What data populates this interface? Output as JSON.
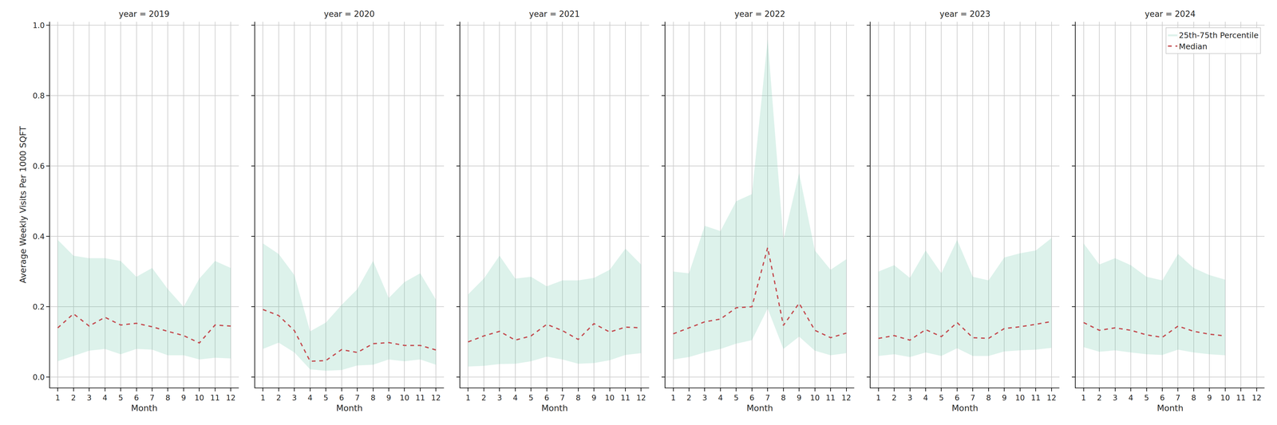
{
  "chart_data": [
    {
      "type": "line",
      "title": "year = 2019",
      "x_label": "Month",
      "y_label": "Average Weekly Visits Per 1000 SQFT",
      "x": [
        1,
        2,
        3,
        4,
        5,
        6,
        7,
        8,
        9,
        10,
        11,
        12
      ],
      "series": [
        {
          "name": "Median",
          "color": "#c44e52",
          "line_style": "dashed",
          "values": [
            0.14,
            0.18,
            0.145,
            0.17,
            0.148,
            0.153,
            0.143,
            0.13,
            0.118,
            0.097,
            0.148,
            0.145
          ]
        },
        {
          "name": "25th-75th Percentile",
          "type": "area",
          "color": "#66c2a5",
          "lower": [
            0.045,
            0.06,
            0.075,
            0.08,
            0.065,
            0.08,
            0.078,
            0.062,
            0.062,
            0.05,
            0.055,
            0.053
          ],
          "upper": [
            0.39,
            0.345,
            0.338,
            0.338,
            0.33,
            0.285,
            0.31,
            0.25,
            0.2,
            0.28,
            0.33,
            0.31
          ]
        }
      ],
      "xlim": [
        0.5,
        12.5
      ],
      "xticks": [
        1,
        2,
        3,
        4,
        5,
        6,
        7,
        8,
        9,
        10,
        11,
        12
      ],
      "ylim": [
        -0.03,
        1.01
      ],
      "yticks": [
        {
          "value": 0,
          "label": "0.0"
        },
        {
          "value": 0.2,
          "label": "0.2"
        },
        {
          "value": 0.4,
          "label": "0.4"
        },
        {
          "value": 0.6,
          "label": "0.6"
        },
        {
          "value": 0.8,
          "label": "0.8"
        },
        {
          "value": 1,
          "label": "1.0"
        }
      ],
      "grid": true
    },
    {
      "type": "line",
      "title": "year = 2020",
      "x_label": "Month",
      "x": [
        1,
        2,
        3,
        4,
        5,
        6,
        7,
        8,
        9,
        10,
        11,
        12
      ],
      "series": [
        {
          "name": "Median",
          "color": "#c44e52",
          "line_style": "dashed",
          "values": [
            0.192,
            0.175,
            0.132,
            0.045,
            0.047,
            0.078,
            0.07,
            0.095,
            0.098,
            0.09,
            0.09,
            0.077
          ]
        },
        {
          "name": "25th-75th Percentile",
          "type": "area",
          "color": "#66c2a5",
          "lower": [
            0.08,
            0.098,
            0.07,
            0.022,
            0.018,
            0.02,
            0.033,
            0.035,
            0.05,
            0.045,
            0.05,
            0.035
          ],
          "upper": [
            0.38,
            0.35,
            0.29,
            0.13,
            0.155,
            0.205,
            0.25,
            0.33,
            0.225,
            0.27,
            0.295,
            0.22
          ]
        }
      ],
      "xlim": [
        0.5,
        12.5
      ],
      "xticks": [
        1,
        2,
        3,
        4,
        5,
        6,
        7,
        8,
        9,
        10,
        11,
        12
      ],
      "ylim": [
        -0.03,
        1.01
      ],
      "yticks": [
        {
          "value": 0,
          "label": "0.0"
        },
        {
          "value": 0.2,
          "label": "0.2"
        },
        {
          "value": 0.4,
          "label": "0.4"
        },
        {
          "value": 0.6,
          "label": "0.6"
        },
        {
          "value": 0.8,
          "label": "0.8"
        },
        {
          "value": 1,
          "label": "1.0"
        }
      ],
      "grid": true,
      "tick_labels": "x"
    },
    {
      "type": "line",
      "title": "year = 2021",
      "x_label": "Month",
      "x": [
        1,
        2,
        3,
        4,
        5,
        6,
        7,
        8,
        9,
        10,
        11,
        12
      ],
      "series": [
        {
          "name": "Median",
          "color": "#c44e52",
          "line_style": "dashed",
          "values": [
            0.1,
            0.117,
            0.13,
            0.105,
            0.117,
            0.15,
            0.132,
            0.107,
            0.152,
            0.128,
            0.142,
            0.14
          ]
        },
        {
          "name": "25th-75th Percentile",
          "type": "area",
          "color": "#66c2a5",
          "lower": [
            0.03,
            0.032,
            0.037,
            0.038,
            0.045,
            0.058,
            0.05,
            0.038,
            0.04,
            0.048,
            0.063,
            0.068
          ],
          "upper": [
            0.235,
            0.28,
            0.345,
            0.28,
            0.285,
            0.258,
            0.275,
            0.275,
            0.282,
            0.305,
            0.365,
            0.32
          ]
        }
      ],
      "xlim": [
        0.5,
        12.5
      ],
      "xticks": [
        1,
        2,
        3,
        4,
        5,
        6,
        7,
        8,
        9,
        10,
        11,
        12
      ],
      "ylim": [
        -0.03,
        1.01
      ],
      "yticks": [
        {
          "value": 0,
          "label": "0.0"
        },
        {
          "value": 0.2,
          "label": "0.2"
        },
        {
          "value": 0.4,
          "label": "0.4"
        },
        {
          "value": 0.6,
          "label": "0.6"
        },
        {
          "value": 0.8,
          "label": "0.8"
        },
        {
          "value": 1,
          "label": "1.0"
        }
      ],
      "grid": true,
      "tick_labels": "x"
    },
    {
      "type": "line",
      "title": "year = 2022",
      "x_label": "Month",
      "x": [
        1,
        2,
        3,
        4,
        5,
        6,
        7,
        8,
        9,
        10,
        11,
        12
      ],
      "series": [
        {
          "name": "Median",
          "color": "#c44e52",
          "line_style": "dashed",
          "values": [
            0.123,
            0.14,
            0.157,
            0.165,
            0.197,
            0.2,
            0.368,
            0.147,
            0.21,
            0.133,
            0.112,
            0.125
          ]
        },
        {
          "name": "25th-75th Percentile",
          "type": "area",
          "color": "#66c2a5",
          "lower": [
            0.05,
            0.057,
            0.07,
            0.08,
            0.095,
            0.105,
            0.195,
            0.08,
            0.115,
            0.075,
            0.062,
            0.068
          ],
          "upper": [
            0.3,
            0.295,
            0.43,
            0.415,
            0.5,
            0.52,
            0.96,
            0.39,
            0.58,
            0.36,
            0.305,
            0.335
          ]
        }
      ],
      "xlim": [
        0.5,
        12.5
      ],
      "xticks": [
        1,
        2,
        3,
        4,
        5,
        6,
        7,
        8,
        9,
        10,
        11,
        12
      ],
      "ylim": [
        -0.03,
        1.01
      ],
      "yticks": [
        {
          "value": 0,
          "label": "0.0"
        },
        {
          "value": 0.2,
          "label": "0.2"
        },
        {
          "value": 0.4,
          "label": "0.4"
        },
        {
          "value": 0.6,
          "label": "0.6"
        },
        {
          "value": 0.8,
          "label": "0.8"
        },
        {
          "value": 1,
          "label": "1.0"
        }
      ],
      "grid": true,
      "tick_labels": "x"
    },
    {
      "type": "line",
      "title": "year = 2023",
      "x_label": "Month",
      "x": [
        1,
        2,
        3,
        4,
        5,
        6,
        7,
        8,
        9,
        10,
        11,
        12
      ],
      "series": [
        {
          "name": "Median",
          "color": "#c44e52",
          "line_style": "dashed",
          "values": [
            0.11,
            0.118,
            0.105,
            0.135,
            0.115,
            0.155,
            0.112,
            0.11,
            0.138,
            0.143,
            0.15,
            0.158
          ]
        },
        {
          "name": "25th-75th Percentile",
          "type": "area",
          "color": "#66c2a5",
          "lower": [
            0.06,
            0.065,
            0.057,
            0.07,
            0.06,
            0.082,
            0.06,
            0.06,
            0.073,
            0.076,
            0.078,
            0.083
          ],
          "upper": [
            0.3,
            0.318,
            0.282,
            0.36,
            0.295,
            0.39,
            0.285,
            0.275,
            0.34,
            0.352,
            0.36,
            0.395
          ]
        }
      ],
      "xlim": [
        0.5,
        12.5
      ],
      "xticks": [
        1,
        2,
        3,
        4,
        5,
        6,
        7,
        8,
        9,
        10,
        11,
        12
      ],
      "ylim": [
        -0.03,
        1.01
      ],
      "yticks": [
        {
          "value": 0,
          "label": "0.0"
        },
        {
          "value": 0.2,
          "label": "0.2"
        },
        {
          "value": 0.4,
          "label": "0.4"
        },
        {
          "value": 0.6,
          "label": "0.6"
        },
        {
          "value": 0.8,
          "label": "0.8"
        },
        {
          "value": 1,
          "label": "1.0"
        }
      ],
      "grid": true,
      "tick_labels": "x"
    },
    {
      "type": "line",
      "title": "year = 2024",
      "x_label": "Month",
      "x": [
        1,
        2,
        3,
        4,
        5,
        6,
        7,
        8,
        9,
        10
      ],
      "series": [
        {
          "name": "Median",
          "color": "#c44e52",
          "line_style": "dashed",
          "values": [
            0.155,
            0.133,
            0.14,
            0.133,
            0.12,
            0.113,
            0.145,
            0.13,
            0.122,
            0.117
          ]
        },
        {
          "name": "25th-75th Percentile",
          "type": "area",
          "color": "#66c2a5",
          "lower": [
            0.085,
            0.072,
            0.076,
            0.07,
            0.065,
            0.063,
            0.078,
            0.07,
            0.065,
            0.062
          ],
          "upper": [
            0.38,
            0.32,
            0.338,
            0.318,
            0.285,
            0.275,
            0.35,
            0.31,
            0.29,
            0.277
          ]
        }
      ],
      "xlim": [
        0.5,
        12.5
      ],
      "xticks": [
        1,
        2,
        3,
        4,
        5,
        6,
        7,
        8,
        9,
        10,
        11,
        12
      ],
      "ylim": [
        -0.03,
        1.01
      ],
      "yticks": [
        {
          "value": 0,
          "label": "0.0"
        },
        {
          "value": 0.2,
          "label": "0.2"
        },
        {
          "value": 0.4,
          "label": "0.4"
        },
        {
          "value": 0.6,
          "label": "0.6"
        },
        {
          "value": 0.8,
          "label": "0.8"
        },
        {
          "value": 1,
          "label": "1.0"
        }
      ],
      "grid": true,
      "tick_labels": "x",
      "legend": "upper right"
    }
  ]
}
